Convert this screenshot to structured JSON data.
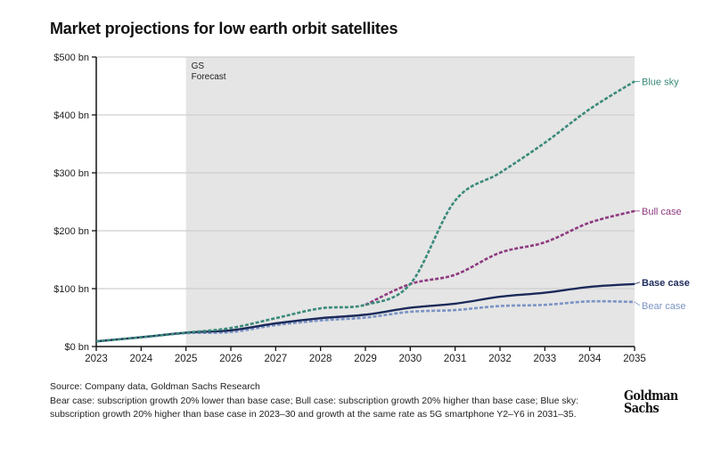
{
  "title": "Market projections for low earth orbit satellites",
  "chart_data": {
    "type": "line",
    "title": "Market projections for low earth orbit satellites",
    "xlabel": "",
    "ylabel": "",
    "x": [
      2023,
      2024,
      2025,
      2026,
      2027,
      2028,
      2029,
      2030,
      2031,
      2032,
      2033,
      2034,
      2035
    ],
    "x_tick_labels": [
      "2023",
      "2024",
      "2025",
      "2026",
      "2027",
      "2028",
      "2029",
      "2030",
      "2031",
      "2032",
      "2033",
      "2034",
      "2035"
    ],
    "y_ticks": [
      0,
      100,
      200,
      300,
      400,
      500
    ],
    "y_tick_labels": [
      "$0 bn",
      "$100 bn",
      "$200 bn",
      "$300 bn",
      "$400 bn",
      "$500 bn"
    ],
    "xlim": [
      2023,
      2035
    ],
    "ylim": [
      0,
      500
    ],
    "grid": true,
    "forecast_region": {
      "start": 2025,
      "end": 2035,
      "label_line1": "GS",
      "label_line2": "Forecast",
      "color": "#e5e5e5"
    },
    "legend": "inline-right",
    "series": [
      {
        "name": "Blue sky",
        "color": "#3a8a7a",
        "style": "dashed",
        "values": [
          9,
          16,
          24,
          32,
          49,
          66,
          72,
          108,
          252,
          300,
          352,
          410,
          458
        ]
      },
      {
        "name": "Bull case",
        "color": "#8e3a80",
        "style": "dashed",
        "start_index": 6,
        "values": [
          null,
          null,
          null,
          null,
          null,
          null,
          72,
          108,
          124,
          162,
          180,
          214,
          234
        ]
      },
      {
        "name": "Base case",
        "color": "#1b2a5a",
        "style": "solid",
        "values": [
          9,
          16,
          24,
          28,
          40,
          49,
          55,
          67,
          74,
          86,
          93,
          103,
          108
        ]
      },
      {
        "name": "Bear case",
        "color": "#7b93c4",
        "style": "dashed",
        "values": [
          9,
          16,
          23,
          25,
          37,
          45,
          50,
          60,
          63,
          70,
          72,
          78,
          77
        ]
      }
    ]
  },
  "footer": {
    "source": "Source: Company data, Goldman Sachs Research",
    "note": "Bear case: subscription growth 20% lower than base case; Bull case: subscription growth 20% higher than base case; Blue sky: subscription growth 20% higher than base case in 2023–30 and growth at the same rate as 5G smartphone Y2–Y6 in 2031–35."
  },
  "logo": {
    "line1": "Goldman",
    "line2": "Sachs"
  }
}
